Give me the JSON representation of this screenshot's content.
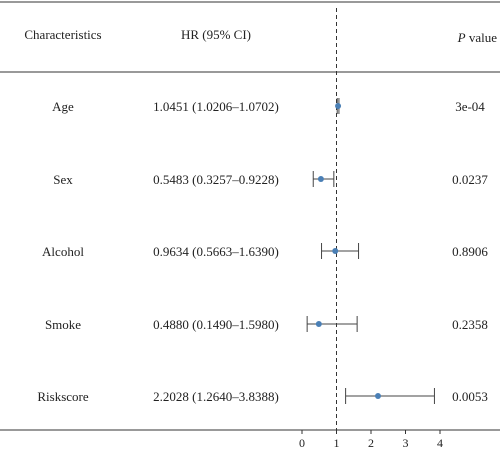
{
  "chart_data": {
    "type": "forest",
    "headers": {
      "characteristics": "Characteristics",
      "hr": "HR (95% CI)",
      "p_italic": "P",
      "p_rest": " value"
    },
    "rows": [
      {
        "label": "Age",
        "hr_text": "1.0451 (1.0206–1.0702)",
        "p": "3e-04",
        "hr": 1.0451,
        "lower": 1.0206,
        "upper": 1.0702
      },
      {
        "label": "Sex",
        "hr_text": "0.5483 (0.3257–0.9228)",
        "p": "0.0237",
        "hr": 0.5483,
        "lower": 0.3257,
        "upper": 0.9228
      },
      {
        "label": "Alcohol",
        "hr_text": "0.9634 (0.5663–1.6390)",
        "p": "0.8906",
        "hr": 0.9634,
        "lower": 0.5663,
        "upper": 1.639
      },
      {
        "label": "Smoke",
        "hr_text": "0.4880 (0.1490–1.5980)",
        "p": "0.2358",
        "hr": 0.488,
        "lower": 0.149,
        "upper": 1.598
      },
      {
        "label": "Riskscore",
        "hr_text": "2.2028 (1.2640–3.8388)",
        "p": "0.0053",
        "hr": 2.2028,
        "lower": 1.264,
        "upper": 3.8388
      }
    ],
    "x_ticks": [
      0,
      1,
      2,
      3,
      4
    ],
    "reference_line": 1,
    "xlim": [
      0,
      4
    ],
    "colors": {
      "point": "#4a7fb5",
      "whisker": "#444444",
      "rule": "#333333",
      "text": "#222222"
    }
  }
}
